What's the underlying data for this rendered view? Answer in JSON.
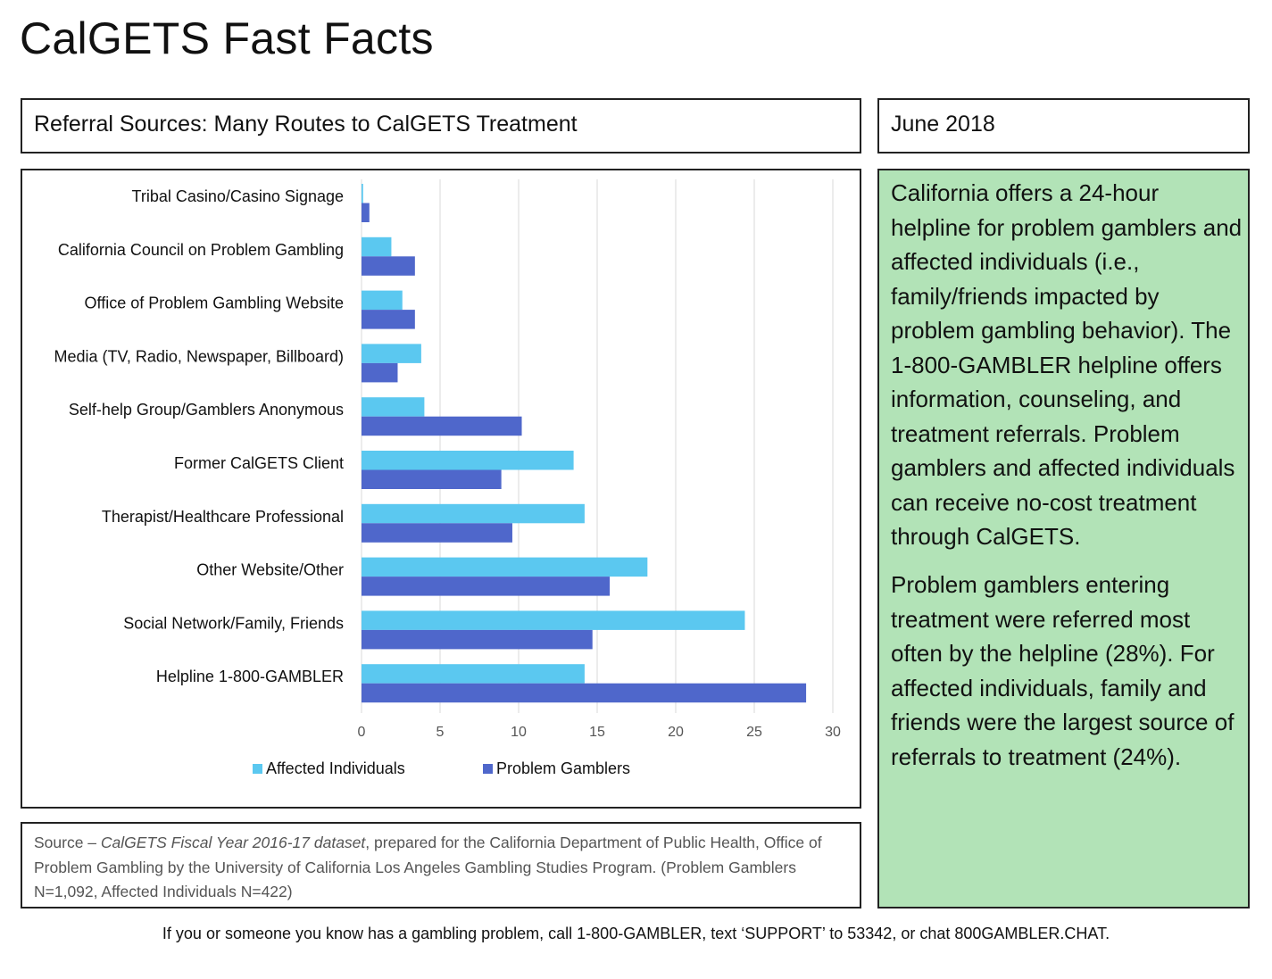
{
  "page": {
    "title": "CalGETS Fast Facts",
    "section_header": "Referral Sources: Many Routes to CalGETS Treatment",
    "date": "June 2018",
    "sidebar_paragraphs": [
      "California offers a 24-hour helpline for problem gamblers and affected individuals (i.e., family/friends impacted by problem gambling behavior). The 1-800-GAMBLER helpline offers information, counseling, and treatment referrals. Problem gamblers and affected individuals can receive no-cost treatment through CalGETS.",
      "Problem gamblers entering treatment were referred most often by the helpline (28%). For affected individuals, family and friends were the largest source of referrals to treatment (24%)."
    ],
    "source": {
      "prefix": "Source – ",
      "dataset": "CalGETS Fiscal Year 2016-17 dataset",
      "rest": ", prepared for the California Department of Public Health, Office of Problem Gambling by the University of California Los Angeles Gambling Studies Program. (Problem Gamblers N=1,092, Affected Individuals N=422)"
    },
    "footer": "If you or someone you know has a gambling problem, call 1-800-GAMBLER, text ‘SUPPORT’ to 53342, or chat 800GAMBLER.CHAT.",
    "colors": {
      "affected": "#5bc8f0",
      "problem": "#4f67cb",
      "sidebar_bg": "#b2e3b7",
      "grid": "#d9d9d9"
    }
  },
  "chart_data": {
    "type": "bar",
    "orientation": "horizontal",
    "categories": [
      "Tribal Casino/Casino Signage",
      "California Council on Problem Gambling",
      "Office of Problem Gambling Website",
      "Media (TV, Radio, Newspaper, Billboard)",
      "Self-help Group/Gamblers Anonymous",
      "Former CalGETS Client",
      "Therapist/Healthcare Professional",
      "Other Website/Other",
      "Social Network/Family, Friends",
      "Helpline 1-800-GAMBLER"
    ],
    "series": [
      {
        "name": "Affected Individuals",
        "values": [
          0.1,
          1.9,
          2.6,
          3.8,
          4.0,
          13.5,
          14.2,
          18.2,
          24.4,
          14.2
        ]
      },
      {
        "name": "Problem Gamblers",
        "values": [
          0.5,
          3.4,
          3.4,
          2.3,
          10.2,
          8.9,
          9.6,
          15.8,
          14.7,
          28.3
        ]
      }
    ],
    "xlim": [
      0,
      30
    ],
    "xticks": [
      0,
      5,
      10,
      15,
      20,
      25,
      30
    ],
    "grid": true,
    "legend": "bottom"
  }
}
